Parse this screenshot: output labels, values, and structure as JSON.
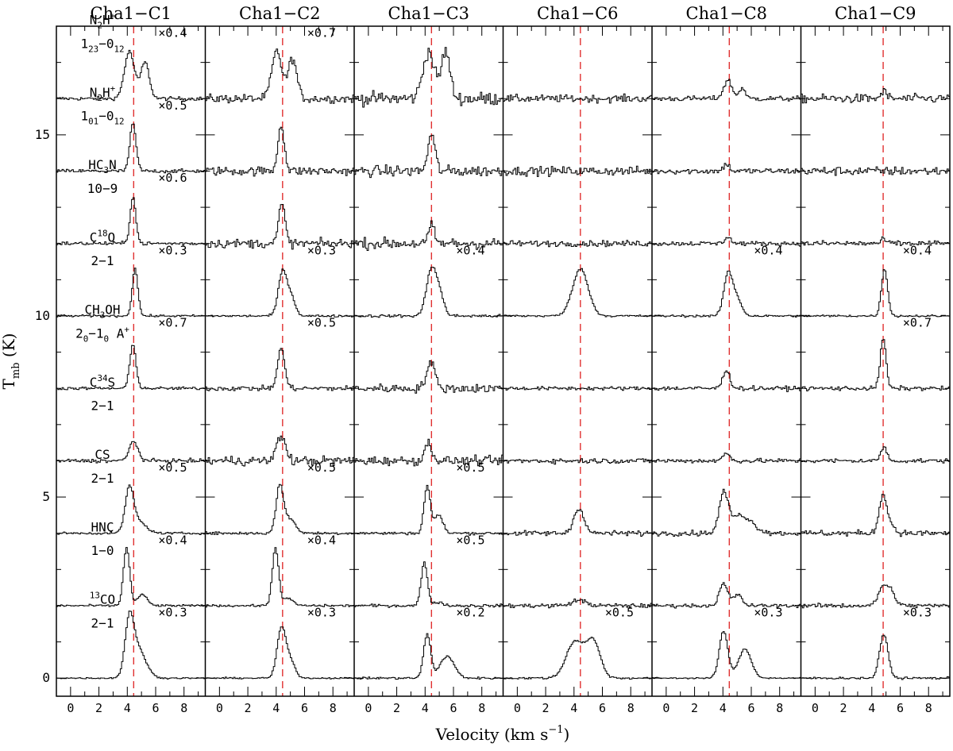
{
  "chart_data": {
    "type": "line",
    "xlabel": "Velocity (km s",
    "xlabel_sup": "−1",
    "xlabel_tail": ")",
    "ylabel": "T",
    "ylabel_sub": "mb",
    "ylabel_tail": " (K)",
    "xlim": [
      -1,
      9.5
    ],
    "ylim": [
      -0.5,
      18.0
    ],
    "x_ticks": [
      0,
      2,
      4,
      6,
      8
    ],
    "y_ticks": [
      0,
      5,
      10,
      15
    ],
    "panels": [
      {
        "name": "Cha1−C1",
        "vlsr": 4.45
      },
      {
        "name": "Cha1−C2",
        "vlsr": 4.45
      },
      {
        "name": "Cha1−C3",
        "vlsr": 4.45
      },
      {
        "name": "Cha1−C6",
        "vlsr": 4.45
      },
      {
        "name": "Cha1−C8",
        "vlsr": 4.45
      },
      {
        "name": "Cha1−C9",
        "vlsr": 4.8
      }
    ],
    "lines": [
      {
        "molecule": "N2H+",
        "mol_parts": [
          [
            "N",
            ""
          ],
          [
            "2",
            "sub"
          ],
          [
            "H",
            ""
          ],
          [
            "+",
            "sup"
          ]
        ],
        "transition_parts": [
          [
            "1",
            ""
          ],
          [
            "23",
            "sub"
          ],
          [
            "−0",
            ""
          ],
          [
            "12",
            "sub"
          ]
        ],
        "offset": 16,
        "scales": [
          "×0.4",
          "×0.7",
          "",
          "",
          "",
          ""
        ],
        "peaks": [
          [
            [
              4.1,
              1.3,
              0.35
            ],
            [
              5.2,
              1.0,
              0.3
            ]
          ],
          [
            [
              4.0,
              1.3,
              0.35
            ],
            [
              5.1,
              1.1,
              0.3
            ]
          ],
          [
            [
              4.2,
              1.3,
              0.4
            ],
            [
              5.4,
              1.3,
              0.3
            ]
          ],
          [],
          [
            [
              4.3,
              0.5,
              0.3
            ],
            [
              5.3,
              0.3,
              0.2
            ]
          ],
          [
            [
              4.8,
              0.2,
              0.2
            ]
          ]
        ],
        "noise": [
          0.05,
          0.12,
          0.18,
          0.1,
          0.07,
          0.12
        ]
      },
      {
        "molecule": "N2H+",
        "mol_parts": [
          [
            "N",
            ""
          ],
          [
            "2",
            "sub"
          ],
          [
            "H",
            ""
          ],
          [
            "+",
            "sup"
          ]
        ],
        "transition_parts": [
          [
            "1",
            ""
          ],
          [
            "01",
            "sub"
          ],
          [
            "−0",
            ""
          ],
          [
            "12",
            "sub"
          ]
        ],
        "offset": 14,
        "scales": [
          "×0.5",
          "",
          "",
          "",
          "",
          ""
        ],
        "peaks": [
          [
            [
              4.35,
              1.3,
              0.22
            ]
          ],
          [
            [
              4.3,
              1.3,
              0.22
            ]
          ],
          [
            [
              4.4,
              1.0,
              0.25
            ]
          ],
          [],
          [
            [
              4.2,
              0.2,
              0.2
            ]
          ],
          []
        ],
        "noise": [
          0.05,
          0.12,
          0.15,
          0.12,
          0.08,
          0.12
        ]
      },
      {
        "molecule": "HC3N",
        "mol_parts": [
          [
            "HC",
            ""
          ],
          [
            "3",
            "sub"
          ],
          [
            "N",
            ""
          ]
        ],
        "transition_parts": [
          [
            "10−9",
            ""
          ]
        ],
        "offset": 12,
        "scales": [
          "×0.6",
          "",
          "",
          "",
          "",
          ""
        ],
        "peaks": [
          [
            [
              4.35,
              1.3,
              0.2
            ]
          ],
          [
            [
              4.35,
              1.1,
              0.22
            ]
          ],
          [
            [
              4.4,
              0.5,
              0.2
            ]
          ],
          [],
          [
            [
              4.3,
              0.2,
              0.2
            ]
          ],
          [
            [
              4.8,
              0.1,
              0.2
            ]
          ]
        ],
        "noise": [
          0.05,
          0.12,
          0.15,
          0.08,
          0.06,
          0.08
        ]
      },
      {
        "molecule": "C18O",
        "mol_parts": [
          [
            "C",
            ""
          ],
          [
            "18",
            "sup"
          ],
          [
            "O",
            ""
          ]
        ],
        "transition_parts": [
          [
            "2−1",
            ""
          ]
        ],
        "offset": 10,
        "scales": [
          "×0.3",
          "×0.3",
          "×0.4",
          "",
          "×0.4",
          "×0.4"
        ],
        "peaks": [
          [
            [
              4.5,
              1.3,
              0.2
            ]
          ],
          [
            [
              4.4,
              1.2,
              0.3
            ],
            [
              5.0,
              0.5,
              0.3
            ]
          ],
          [
            [
              4.4,
              1.3,
              0.35
            ],
            [
              5.0,
              0.5,
              0.3
            ]
          ],
          [
            [
              4.4,
              1.3,
              0.55
            ]
          ],
          [
            [
              4.3,
              1.1,
              0.3
            ],
            [
              4.9,
              0.5,
              0.35
            ]
          ],
          [
            [
              4.85,
              1.3,
              0.22
            ]
          ]
        ],
        "noise": [
          0.03,
          0.03,
          0.04,
          0.03,
          0.03,
          0.03
        ]
      },
      {
        "molecule": "CH3OH",
        "mol_parts": [
          [
            "CH",
            ""
          ],
          [
            "3",
            "sub"
          ],
          [
            "OH",
            ""
          ]
        ],
        "transition_parts": [
          [
            "2",
            ""
          ],
          [
            "0",
            "sub"
          ],
          [
            "−1",
            ""
          ],
          [
            "0",
            "sub"
          ],
          [
            " A",
            ""
          ],
          [
            "+",
            "sup"
          ]
        ],
        "offset": 8,
        "scales": [
          "×0.7",
          "×0.5",
          "",
          "",
          "",
          "×0.7"
        ],
        "peaks": [
          [
            [
              4.35,
              1.2,
              0.22
            ]
          ],
          [
            [
              4.3,
              1.1,
              0.25
            ]
          ],
          [
            [
              4.35,
              0.7,
              0.3
            ]
          ],
          [],
          [
            [
              4.2,
              0.5,
              0.25
            ]
          ],
          [
            [
              4.75,
              1.4,
              0.2
            ]
          ]
        ],
        "noise": [
          0.04,
          0.07,
          0.12,
          0.05,
          0.06,
          0.06
        ]
      },
      {
        "molecule": "C34S",
        "mol_parts": [
          [
            "C",
            ""
          ],
          [
            "34",
            "sup"
          ],
          [
            "S",
            ""
          ]
        ],
        "transition_parts": [
          [
            "2−1",
            ""
          ]
        ],
        "offset": 6,
        "scales": [
          "",
          "",
          "",
          "",
          "",
          ""
        ],
        "peaks": [
          [
            [
              4.4,
              0.55,
              0.3
            ]
          ],
          [
            [
              4.3,
              0.7,
              0.3
            ]
          ],
          [
            [
              4.2,
              0.5,
              0.25
            ]
          ],
          [],
          [
            [
              4.2,
              0.2,
              0.25
            ]
          ],
          [
            [
              4.8,
              0.4,
              0.2
            ]
          ]
        ],
        "noise": [
          0.05,
          0.13,
          0.12,
          0.07,
          0.06,
          0.06
        ]
      },
      {
        "molecule": "CS",
        "mol_parts": [
          [
            "CS",
            ""
          ]
        ],
        "transition_parts": [
          [
            "2−1",
            ""
          ]
        ],
        "offset": 4,
        "scales": [
          "×0.5",
          "×0.5",
          "×0.5",
          "",
          "",
          ""
        ],
        "peaks": [
          [
            [
              4.1,
              1.2,
              0.3
            ],
            [
              4.8,
              0.3,
              0.5
            ]
          ],
          [
            [
              4.2,
              1.3,
              0.25
            ],
            [
              4.9,
              0.4,
              0.4
            ]
          ],
          [
            [
              4.1,
              1.3,
              0.22
            ],
            [
              4.9,
              0.5,
              0.3
            ]
          ],
          [
            [
              4.3,
              0.7,
              0.35
            ]
          ],
          [
            [
              4.0,
              1.0,
              0.3
            ],
            [
              5.2,
              0.5,
              0.8
            ]
          ],
          [
            [
              4.7,
              1.0,
              0.25
            ],
            [
              5.2,
              0.3,
              0.3
            ]
          ]
        ],
        "noise": [
          0.03,
          0.04,
          0.04,
          0.07,
          0.07,
          0.08
        ]
      },
      {
        "molecule": "HNC",
        "mol_parts": [
          [
            "HNC",
            ""
          ]
        ],
        "transition_parts": [
          [
            "1−0",
            ""
          ]
        ],
        "offset": 2,
        "scales": [
          "×0.4",
          "×0.4",
          "×0.5",
          "",
          "",
          ""
        ],
        "peaks": [
          [
            [
              3.9,
              1.6,
              0.22
            ],
            [
              5.0,
              0.3,
              0.35
            ]
          ],
          [
            [
              3.9,
              1.6,
              0.22
            ],
            [
              4.8,
              0.2,
              0.35
            ]
          ],
          [
            [
              3.9,
              1.2,
              0.22
            ],
            [
              4.9,
              0.1,
              0.3
            ]
          ],
          [
            [
              4.3,
              0.15,
              0.5
            ]
          ],
          [
            [
              4.0,
              0.6,
              0.3
            ],
            [
              5.0,
              0.3,
              0.3
            ]
          ],
          [
            [
              4.7,
              0.5,
              0.3
            ],
            [
              5.3,
              0.4,
              0.3
            ]
          ]
        ],
        "noise": [
          0.03,
          0.03,
          0.04,
          0.06,
          0.05,
          0.06
        ]
      },
      {
        "molecule": "13CO",
        "mol_parts": [
          [
            "13",
            "sup"
          ],
          [
            "CO",
            ""
          ]
        ],
        "transition_parts": [
          [
            "2−1",
            ""
          ]
        ],
        "offset": 0,
        "scales": [
          "×0.3",
          "×0.3",
          "×0.2",
          "×0.5",
          "×0.3",
          "×0.3"
        ],
        "peaks": [
          [
            [
              4.1,
              1.4,
              0.3
            ],
            [
              4.7,
              0.8,
              0.55
            ]
          ],
          [
            [
              4.3,
              1.3,
              0.3
            ],
            [
              4.9,
              0.5,
              0.35
            ]
          ],
          [
            [
              4.1,
              1.2,
              0.25
            ],
            [
              5.5,
              0.6,
              0.5
            ]
          ],
          [
            [
              4.0,
              1.0,
              0.6
            ],
            [
              5.3,
              1.0,
              0.5
            ]
          ],
          [
            [
              4.0,
              1.3,
              0.3
            ],
            [
              5.5,
              0.8,
              0.45
            ]
          ],
          [
            [
              4.8,
              1.2,
              0.3
            ]
          ]
        ],
        "noise": [
          0.02,
          0.02,
          0.03,
          0.03,
          0.02,
          0.03
        ]
      }
    ]
  },
  "colors": {
    "vlsr_line": "#e03030",
    "axes": "#000000",
    "spectrum": "#000000"
  }
}
